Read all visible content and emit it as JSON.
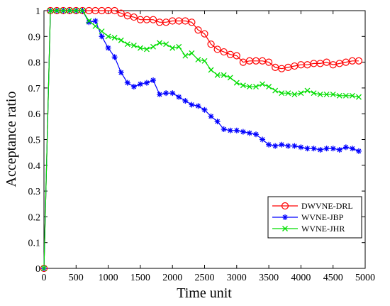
{
  "chart_data": {
    "type": "line",
    "title": "",
    "xlabel": "Time unit",
    "ylabel": "Acceptance ratio",
    "xlim": [
      0,
      5000
    ],
    "ylim": [
      0,
      1
    ],
    "xticks": [
      0,
      500,
      1000,
      1500,
      2000,
      2500,
      3000,
      3500,
      4000,
      4500,
      5000
    ],
    "yticks": [
      0,
      0.1,
      0.2,
      0.3,
      0.4,
      0.5,
      0.6,
      0.7,
      0.8,
      0.9,
      1
    ],
    "grid": false,
    "legend": "bottom-right",
    "series": [
      {
        "name": "DWVNE-DRL",
        "color": "#ff0000",
        "marker": "circle",
        "x": [
          0,
          100,
          200,
          300,
          400,
          500,
          600,
          700,
          800,
          900,
          1000,
          1100,
          1200,
          1300,
          1400,
          1500,
          1600,
          1700,
          1800,
          1900,
          2000,
          2100,
          2200,
          2300,
          2400,
          2500,
          2600,
          2700,
          2800,
          2900,
          3000,
          3100,
          3200,
          3300,
          3400,
          3500,
          3600,
          3700,
          3800,
          3900,
          4000,
          4100,
          4200,
          4300,
          4400,
          4500,
          4600,
          4700,
          4800,
          4900
        ],
        "y": [
          0,
          1,
          1,
          1,
          1,
          1,
          1,
          1,
          1,
          1,
          1,
          1,
          0.99,
          0.98,
          0.975,
          0.965,
          0.965,
          0.965,
          0.955,
          0.955,
          0.96,
          0.96,
          0.96,
          0.955,
          0.925,
          0.91,
          0.87,
          0.85,
          0.84,
          0.83,
          0.825,
          0.8,
          0.805,
          0.805,
          0.805,
          0.8,
          0.78,
          0.775,
          0.78,
          0.785,
          0.79,
          0.79,
          0.795,
          0.795,
          0.8,
          0.79,
          0.795,
          0.8,
          0.805,
          0.805
        ]
      },
      {
        "name": "WVNE-JBP",
        "color": "#0000ff",
        "marker": "star",
        "x": [
          0,
          100,
          200,
          300,
          400,
          500,
          600,
          700,
          800,
          900,
          1000,
          1100,
          1200,
          1300,
          1400,
          1500,
          1600,
          1700,
          1800,
          1900,
          2000,
          2100,
          2200,
          2300,
          2400,
          2500,
          2600,
          2700,
          2800,
          2900,
          3000,
          3100,
          3200,
          3300,
          3400,
          3500,
          3600,
          3700,
          3800,
          3900,
          4000,
          4100,
          4200,
          4300,
          4400,
          4500,
          4600,
          4700,
          4800,
          4900
        ],
        "y": [
          0,
          1,
          1,
          1,
          1,
          1,
          1,
          0.955,
          0.96,
          0.9,
          0.855,
          0.82,
          0.76,
          0.72,
          0.705,
          0.715,
          0.72,
          0.73,
          0.675,
          0.68,
          0.68,
          0.665,
          0.65,
          0.635,
          0.63,
          0.615,
          0.59,
          0.57,
          0.54,
          0.535,
          0.535,
          0.53,
          0.525,
          0.52,
          0.5,
          0.48,
          0.475,
          0.48,
          0.475,
          0.475,
          0.47,
          0.465,
          0.465,
          0.46,
          0.465,
          0.465,
          0.46,
          0.47,
          0.465,
          0.455
        ]
      },
      {
        "name": "WVNE-JHR",
        "color": "#00dd00",
        "marker": "x",
        "x": [
          0,
          100,
          200,
          300,
          400,
          500,
          600,
          700,
          800,
          900,
          1000,
          1100,
          1200,
          1300,
          1400,
          1500,
          1600,
          1700,
          1800,
          1900,
          2000,
          2100,
          2200,
          2300,
          2400,
          2500,
          2600,
          2700,
          2800,
          2900,
          3000,
          3100,
          3200,
          3300,
          3400,
          3500,
          3600,
          3700,
          3800,
          3900,
          4000,
          4100,
          4200,
          4300,
          4400,
          4500,
          4600,
          4700,
          4800,
          4900
        ],
        "y": [
          0,
          1,
          1,
          1,
          1,
          1,
          1,
          0.96,
          0.94,
          0.92,
          0.9,
          0.895,
          0.885,
          0.87,
          0.865,
          0.855,
          0.85,
          0.86,
          0.875,
          0.87,
          0.855,
          0.86,
          0.825,
          0.835,
          0.81,
          0.805,
          0.77,
          0.75,
          0.75,
          0.74,
          0.72,
          0.71,
          0.705,
          0.705,
          0.715,
          0.705,
          0.69,
          0.68,
          0.68,
          0.675,
          0.68,
          0.69,
          0.68,
          0.675,
          0.675,
          0.675,
          0.67,
          0.67,
          0.67,
          0.665
        ]
      }
    ]
  }
}
